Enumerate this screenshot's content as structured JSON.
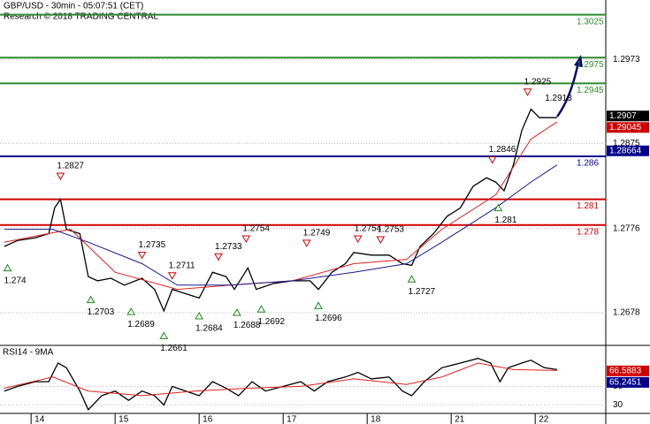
{
  "header": {
    "title": "GBP/USD - 30min - 05:07:51 (CET)",
    "subtitle": "Research © 2018 TRADING CENTRAL"
  },
  "chart_data": [
    {
      "type": "line",
      "xlim": [
        -0.37,
        6.84
      ],
      "xticks": [
        {
          "value": 0,
          "label": "14"
        },
        {
          "value": 1,
          "label": "15"
        },
        {
          "value": 2,
          "label": "16"
        },
        {
          "value": 3,
          "label": "17"
        },
        {
          "value": 4,
          "label": "18"
        },
        {
          "value": 5,
          "label": "21"
        },
        {
          "value": 6,
          "label": "22"
        }
      ],
      "ylim": [
        1.26398,
        1.30421
      ],
      "yticks": [
        1.2678,
        1.2776,
        1.2875,
        1.2973
      ],
      "grid": true,
      "series": [
        {
          "color": "#000000",
          "x": [
            -0.32,
            -0.16,
            0.05,
            0.21,
            0.28,
            0.35,
            0.42,
            0.58,
            0.68,
            0.79,
            0.95,
            1.11,
            1.32,
            1.47,
            1.58,
            1.68,
            1.84,
            2.0,
            2.16,
            2.32,
            2.42,
            2.58,
            2.68,
            2.89,
            3.11,
            3.32,
            3.42,
            3.58,
            3.74,
            3.84,
            4.05,
            4.26,
            4.42,
            4.53,
            4.63,
            4.79,
            4.95,
            5.11,
            5.26,
            5.42,
            5.53,
            5.63,
            5.74,
            5.84,
            5.95,
            6.05,
            6.16,
            6.26
          ],
          "values": [
            1.2755,
            1.2762,
            1.2765,
            1.277,
            1.28,
            1.281,
            1.2775,
            1.277,
            1.272,
            1.2715,
            1.2718,
            1.271,
            1.2718,
            1.2705,
            1.268,
            1.2705,
            1.27,
            1.2695,
            1.2725,
            1.272,
            1.2705,
            1.273,
            1.2705,
            1.2712,
            1.2715,
            1.2715,
            1.2705,
            1.2725,
            1.2735,
            1.2748,
            1.2745,
            1.2745,
            1.2735,
            1.2733,
            1.2755,
            1.277,
            1.279,
            1.28,
            1.2825,
            1.2835,
            1.283,
            1.282,
            1.285,
            1.289,
            1.2915,
            1.2905,
            1.2905,
            1.2905
          ]
        },
        {
          "color": "#e02020",
          "x": [
            -0.32,
            0.47,
            1.0,
            1.74,
            2.37,
            3.11,
            3.84,
            4.47,
            4.89,
            5.53,
            5.95,
            6.26
          ],
          "values": [
            1.276,
            1.2775,
            1.2725,
            1.2705,
            1.271,
            1.2715,
            1.2735,
            1.274,
            1.2775,
            1.2815,
            1.288,
            1.29
          ]
        },
        {
          "color": "#1a1a8c",
          "x": [
            -0.32,
            0.26,
            0.68,
            1.32,
            1.74,
            2.37,
            3.11,
            3.84,
            4.47,
            4.89,
            5.53,
            5.95,
            6.26
          ],
          "values": [
            1.2775,
            1.2775,
            1.276,
            1.2735,
            1.271,
            1.271,
            1.2715,
            1.2725,
            1.2735,
            1.276,
            1.28,
            1.283,
            1.285
          ]
        }
      ],
      "levels": [
        {
          "value": 1.3025,
          "color": "#2e8b2e"
        },
        {
          "value": 1.2975,
          "color": "#2e8b2e"
        },
        {
          "value": 1.2945,
          "color": "#2e8b2e"
        },
        {
          "value": 1.286,
          "color": "#00008b"
        },
        {
          "value": 1.281,
          "color": "#d00000"
        },
        {
          "value": 1.278,
          "color": "#d00000"
        }
      ],
      "annotations": [
        {
          "x": 0.35,
          "value": 1.2827,
          "kind": "high"
        },
        {
          "x": 1.32,
          "value": 1.2735,
          "kind": "high"
        },
        {
          "x": 1.68,
          "value": 1.2711,
          "kind": "high"
        },
        {
          "x": 2.23,
          "value": 1.2733,
          "kind": "high"
        },
        {
          "x": 2.56,
          "value": 1.2754,
          "kind": "high"
        },
        {
          "x": 3.28,
          "value": 1.2749,
          "kind": "high"
        },
        {
          "x": 3.89,
          "value": 1.2754,
          "kind": "high"
        },
        {
          "x": 4.16,
          "value": 1.2753,
          "kind": "high"
        },
        {
          "x": 5.49,
          "value": 1.2846,
          "kind": "high"
        },
        {
          "x": 5.91,
          "value": 1.2925,
          "kind": "high"
        },
        {
          "x": 6.2,
          "value": 1.2913,
          "kind": "note"
        },
        {
          "x": -0.28,
          "value": 1.274,
          "kind": "low"
        },
        {
          "x": 0.71,
          "value": 1.2703,
          "kind": "low"
        },
        {
          "x": 1.19,
          "value": 1.2689,
          "kind": "low"
        },
        {
          "x": 1.58,
          "value": 1.2661,
          "kind": "low"
        },
        {
          "x": 2.0,
          "value": 1.2684,
          "kind": "low"
        },
        {
          "x": 2.45,
          "value": 1.2688,
          "kind": "low"
        },
        {
          "x": 2.74,
          "value": 1.2692,
          "kind": "low"
        },
        {
          "x": 3.42,
          "value": 1.2696,
          "kind": "low"
        },
        {
          "x": 4.53,
          "value": 1.2727,
          "kind": "low"
        },
        {
          "x": 5.56,
          "value": 1.281,
          "kind": "low"
        }
      ],
      "price_boxes": [
        {
          "value": 1.2907,
          "color": "#000000"
        },
        {
          "value": 1.29045,
          "color": "#d00000"
        },
        {
          "value": 1.28664,
          "color": "#00008b"
        }
      ]
    },
    {
      "type": "line",
      "label": "RSI14 - 9MA",
      "xlim": [
        -0.37,
        6.84
      ],
      "ylim": [
        21,
        93
      ],
      "yticks": [
        30,
        50
      ],
      "grid": true,
      "series": [
        {
          "color": "#000000",
          "x": [
            -0.32,
            -0.16,
            0.05,
            0.21,
            0.32,
            0.42,
            0.58,
            0.68,
            0.84,
            1.0,
            1.16,
            1.32,
            1.47,
            1.58,
            1.68,
            1.84,
            2.0,
            2.16,
            2.32,
            2.47,
            2.63,
            2.79,
            3.0,
            3.21,
            3.37,
            3.53,
            3.74,
            3.89,
            4.05,
            4.26,
            4.42,
            4.53,
            4.68,
            4.89,
            5.11,
            5.32,
            5.47,
            5.58,
            5.68,
            5.84,
            5.95,
            6.11,
            6.26
          ],
          "values": [
            45,
            50,
            55,
            55,
            75,
            70,
            45,
            25,
            40,
            45,
            35,
            45,
            40,
            30,
            50,
            45,
            40,
            55,
            48,
            40,
            55,
            45,
            50,
            55,
            45,
            55,
            60,
            65,
            58,
            60,
            45,
            40,
            55,
            70,
            75,
            80,
            75,
            55,
            70,
            75,
            78,
            70,
            68
          ]
        },
        {
          "color": "#e02020",
          "x": [
            -0.32,
            0.26,
            0.68,
            1.32,
            1.95,
            2.58,
            3.21,
            3.84,
            4.47,
            4.89,
            5.32,
            5.74,
            6.26
          ],
          "values": [
            48,
            60,
            45,
            40,
            45,
            48,
            50,
            58,
            52,
            60,
            75,
            68,
            67
          ]
        }
      ],
      "price_boxes": [
        {
          "value": 66.5883,
          "color": "#d00000"
        },
        {
          "value": 65.2451,
          "color": "#00008b"
        }
      ]
    }
  ]
}
